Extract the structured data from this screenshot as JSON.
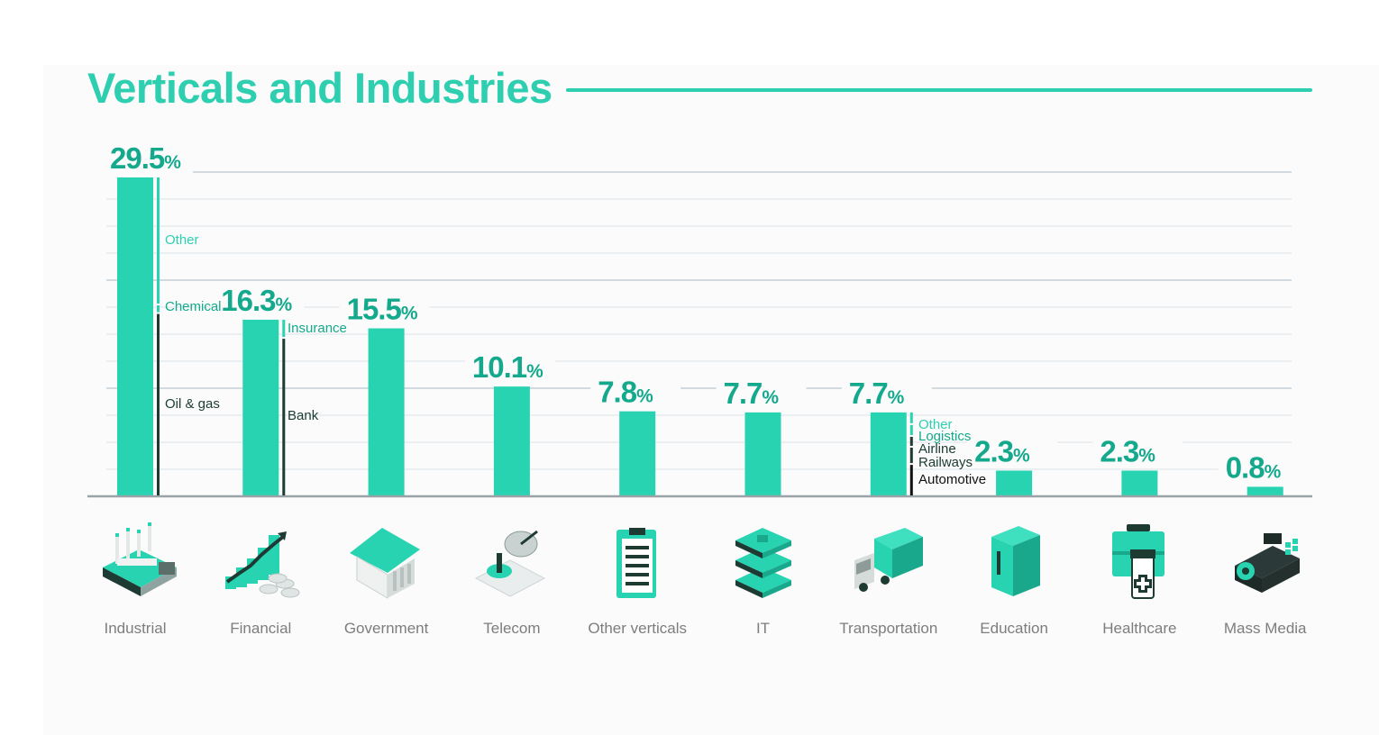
{
  "title": "Verticals and Industries",
  "colors": {
    "accent": "#2ecfb0",
    "bar": "#27d3b0",
    "value_text": "#14a98d",
    "dark_segment": "#1b3b33",
    "grid": "#dde3e8",
    "baseline": "#9aa3a8",
    "category_text": "#7d7d7d"
  },
  "chart_data": {
    "type": "bar",
    "title": "Verticals and Industries",
    "xlabel": "",
    "ylabel": "",
    "ylim": [
      0,
      30
    ],
    "unit": "%",
    "grid": true,
    "categories": [
      "Industrial",
      "Financial",
      "Government",
      "Telecom",
      "Other verticals",
      "IT",
      "Transportation",
      "Education",
      "Healthcare",
      "Mass Media"
    ],
    "values": [
      29.5,
      16.3,
      15.5,
      10.1,
      7.8,
      7.7,
      7.7,
      2.3,
      2.3,
      0.8
    ],
    "value_labels": [
      "29.5",
      "16.3",
      "15.5",
      "10.1",
      "7.8",
      "7.7",
      "7.7",
      "2.3",
      "2.3",
      "0.8"
    ],
    "percent_sign": "%",
    "icons": [
      "factory-icon",
      "growth-chart-coins-icon",
      "bank-building-icon",
      "satellite-dish-icon",
      "clipboard-icon",
      "server-stack-icon",
      "truck-icon",
      "books-icon",
      "first-aid-kit-icon",
      "video-camera-icon"
    ],
    "breakdowns": [
      {
        "category": "Industrial",
        "segments": [
          {
            "label": "Oil & gas",
            "value": 17.0
          },
          {
            "label": "Chemical",
            "value": 0.8
          },
          {
            "label": "Other",
            "value": 11.7
          }
        ]
      },
      {
        "category": "Financial",
        "segments": [
          {
            "label": "Bank",
            "value": 14.7
          },
          {
            "label": "Insurance",
            "value": 1.6
          }
        ]
      },
      {
        "category": "Transportation",
        "segments": [
          {
            "label": "Automotive",
            "value": 3.0
          },
          {
            "label": "Railways",
            "value": 1.6
          },
          {
            "label": "Airline",
            "value": 1.0
          },
          {
            "label": "Logistics",
            "value": 1.1
          },
          {
            "label": "Other",
            "value": 1.0
          }
        ]
      }
    ]
  }
}
